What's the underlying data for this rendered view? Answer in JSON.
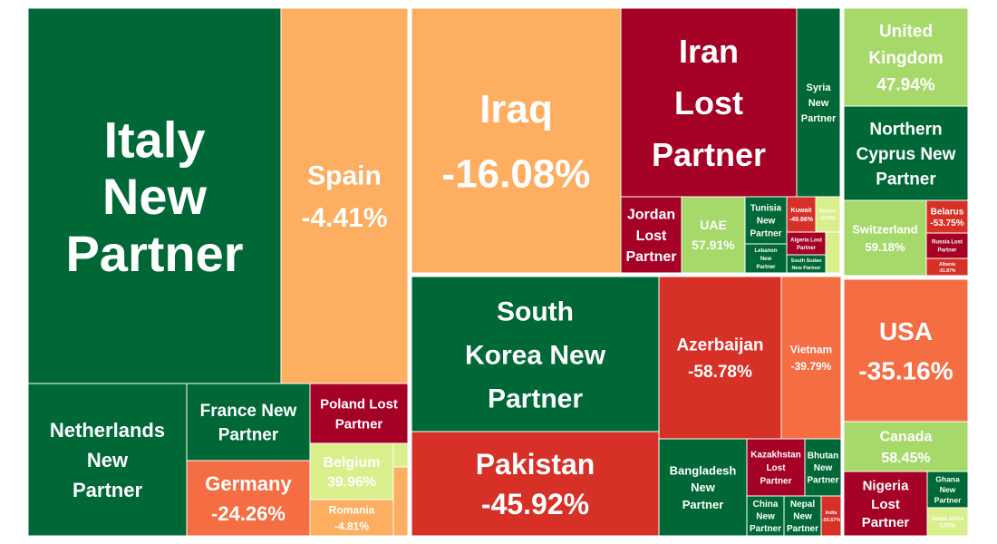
{
  "chart_data": {
    "type": "treemap",
    "title": "",
    "colors": {
      "new_partner": "#006837",
      "lost_partner": "#A50026",
      "strong_negative": "#D73027",
      "moderate_negative": "#F46D43",
      "slight_negative": "#FDAE61",
      "slight_positive": "#D9EF8B",
      "positive": "#A6D96A",
      "separator": "#ffffff"
    },
    "groups": [
      {
        "tiles": [
          {
            "id": "italy",
            "lines": [
              "Italy",
              "New",
              "Partner"
            ],
            "status": "new_partner"
          },
          {
            "id": "spain",
            "lines": [
              "Spain",
              "-4.41%"
            ],
            "status": "change",
            "change_pct": -4.41
          },
          {
            "id": "netherlands",
            "lines": [
              "Netherlands",
              "New",
              "Partner"
            ],
            "status": "new_partner"
          },
          {
            "id": "france",
            "lines": [
              "France New",
              "Partner"
            ],
            "status": "new_partner"
          },
          {
            "id": "germany",
            "lines": [
              "Germany",
              "-24.26%"
            ],
            "status": "change",
            "change_pct": -24.26
          },
          {
            "id": "poland",
            "lines": [
              "Poland Lost",
              "Partner"
            ],
            "status": "lost_partner"
          },
          {
            "id": "belgium",
            "lines": [
              "Belgium",
              "39.96%"
            ],
            "status": "change",
            "change_pct": 39.96
          },
          {
            "id": "romania",
            "lines": [
              "Romania",
              "-4.81%"
            ],
            "status": "change",
            "change_pct": -4.81
          },
          {
            "id": "eu-small-1",
            "lines": [],
            "status": "change",
            "change_pct": 20
          },
          {
            "id": "eu-small-2",
            "lines": [],
            "status": "change",
            "change_pct": -10
          }
        ]
      },
      {
        "tiles": [
          {
            "id": "iraq",
            "lines": [
              "Iraq",
              "-16.08%"
            ],
            "status": "change",
            "change_pct": -16.08
          },
          {
            "id": "iran",
            "lines": [
              "Iran",
              "Lost",
              "Partner"
            ],
            "status": "lost_partner"
          },
          {
            "id": "syria",
            "lines": [
              "Syria",
              "New",
              "Partner"
            ],
            "status": "new_partner"
          },
          {
            "id": "jordan",
            "lines": [
              "Jordan",
              "Lost",
              "Partner"
            ],
            "status": "lost_partner"
          },
          {
            "id": "uae",
            "lines": [
              "UAE",
              "57.91%"
            ],
            "status": "change",
            "change_pct": 57.91
          },
          {
            "id": "tunisia",
            "lines": [
              "Tunisia",
              "New",
              "Partner"
            ],
            "status": "new_partner"
          },
          {
            "id": "kuwait",
            "lines": [
              "Kuwait",
              "-49.86%"
            ],
            "status": "change",
            "change_pct": -49.86
          },
          {
            "id": "bahrain",
            "lines": [
              "Bahrain",
              "40.63%"
            ],
            "status": "change",
            "change_pct": 40.63
          },
          {
            "id": "lebanon",
            "lines": [
              "Lebanon",
              "New",
              "Partner"
            ],
            "status": "new_partner"
          },
          {
            "id": "algeria",
            "lines": [
              "Algeria Lost",
              "Partner"
            ],
            "status": "lost_partner"
          },
          {
            "id": "southsudan",
            "lines": [
              "South Sudan",
              "New Partner"
            ],
            "status": "new_partner"
          },
          {
            "id": "me-small-1",
            "lines": [],
            "status": "change",
            "change_pct": 20
          },
          {
            "id": "south-korea",
            "lines": [
              "South",
              "Korea New",
              "Partner"
            ],
            "status": "new_partner"
          },
          {
            "id": "pakistan",
            "lines": [
              "Pakistan",
              "-45.92%"
            ],
            "status": "change",
            "change_pct": -45.92
          },
          {
            "id": "azerbaijan",
            "lines": [
              "Azerbaijan",
              "-58.78%"
            ],
            "status": "change",
            "change_pct": -58.78
          },
          {
            "id": "vietnam",
            "lines": [
              "Vietnam",
              "-39.79%"
            ],
            "status": "change",
            "change_pct": -39.79
          },
          {
            "id": "bangladesh",
            "lines": [
              "Bangladesh",
              "New",
              "Partner"
            ],
            "status": "new_partner"
          },
          {
            "id": "kazakhstan",
            "lines": [
              "Kazakhstan",
              "Lost",
              "Partner"
            ],
            "status": "lost_partner"
          },
          {
            "id": "bhutan",
            "lines": [
              "Bhutan",
              "New",
              "Partner"
            ],
            "status": "new_partner"
          },
          {
            "id": "china",
            "lines": [
              "China",
              "New",
              "Partner"
            ],
            "status": "new_partner"
          },
          {
            "id": "nepal",
            "lines": [
              "Nepal",
              "New",
              "Partner"
            ],
            "status": "new_partner"
          },
          {
            "id": "india",
            "lines": [
              "India",
              "-50.57%"
            ],
            "status": "change",
            "change_pct": -50.57
          }
        ]
      },
      {
        "tiles": [
          {
            "id": "uk",
            "lines": [
              "United",
              "Kingdom",
              "47.94%"
            ],
            "status": "change",
            "change_pct": 47.94
          },
          {
            "id": "northern-cyprus",
            "lines": [
              "Northern",
              "Cyprus New",
              "Partner"
            ],
            "status": "new_partner"
          },
          {
            "id": "switzerland",
            "lines": [
              "Switzerland",
              "59.18%"
            ],
            "status": "change",
            "change_pct": 59.18
          },
          {
            "id": "belarus",
            "lines": [
              "Belarus",
              "-53.75%"
            ],
            "status": "change",
            "change_pct": -53.75
          },
          {
            "id": "russia",
            "lines": [
              "Russia Lost",
              "Partner"
            ],
            "status": "lost_partner"
          },
          {
            "id": "albania",
            "lines": [
              "Albania",
              "-51.87%"
            ],
            "status": "change",
            "change_pct": -51.87
          },
          {
            "id": "usa",
            "lines": [
              "USA",
              "-35.16%"
            ],
            "status": "change",
            "change_pct": -35.16
          },
          {
            "id": "canada",
            "lines": [
              "Canada",
              "58.45%"
            ],
            "status": "change",
            "change_pct": 58.45
          },
          {
            "id": "nigeria",
            "lines": [
              "Nigeria",
              "Lost",
              "Partner"
            ],
            "status": "lost_partner"
          },
          {
            "id": "ghana",
            "lines": [
              "Ghana",
              "New",
              "Partner"
            ],
            "status": "new_partner"
          },
          {
            "id": "south-africa",
            "lines": [
              "South Africa",
              "5.02%"
            ],
            "status": "change",
            "change_pct": 5.02
          }
        ]
      }
    ]
  }
}
